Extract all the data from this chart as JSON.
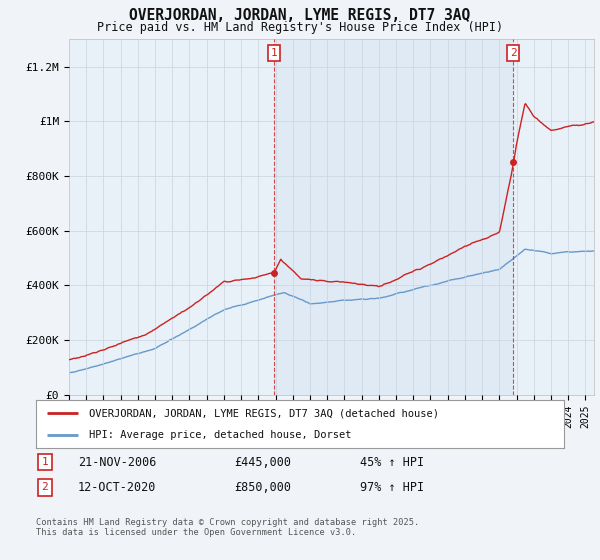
{
  "title": "OVERJORDAN, JORDAN, LYME REGIS, DT7 3AQ",
  "subtitle": "Price paid vs. HM Land Registry's House Price Index (HPI)",
  "ylabel_ticks": [
    "£0",
    "£200K",
    "£400K",
    "£600K",
    "£800K",
    "£1M",
    "£1.2M"
  ],
  "ytick_values": [
    0,
    200000,
    400000,
    600000,
    800000,
    1000000,
    1200000
  ],
  "ylim": [
    0,
    1300000
  ],
  "xlim_start": 1995,
  "xlim_end": 2025.5,
  "hpi_color": "#6699cc",
  "price_color": "#cc2222",
  "marker1_x": 2006.9,
  "marker1_y": 445000,
  "marker2_x": 2020.8,
  "marker2_y": 850000,
  "annotation1_date": "21-NOV-2006",
  "annotation1_price": "£445,000",
  "annotation1_hpi": "45% ↑ HPI",
  "annotation2_date": "12-OCT-2020",
  "annotation2_price": "£850,000",
  "annotation2_hpi": "97% ↑ HPI",
  "legend_line1": "OVERJORDAN, JORDAN, LYME REGIS, DT7 3AQ (detached house)",
  "legend_line2": "HPI: Average price, detached house, Dorset",
  "footer": "Contains HM Land Registry data © Crown copyright and database right 2025.\nThis data is licensed under the Open Government Licence v3.0.",
  "background_color": "#f0f4f8",
  "plot_bg_color": "#e8f0f8",
  "grid_color": "#c8d4e0"
}
